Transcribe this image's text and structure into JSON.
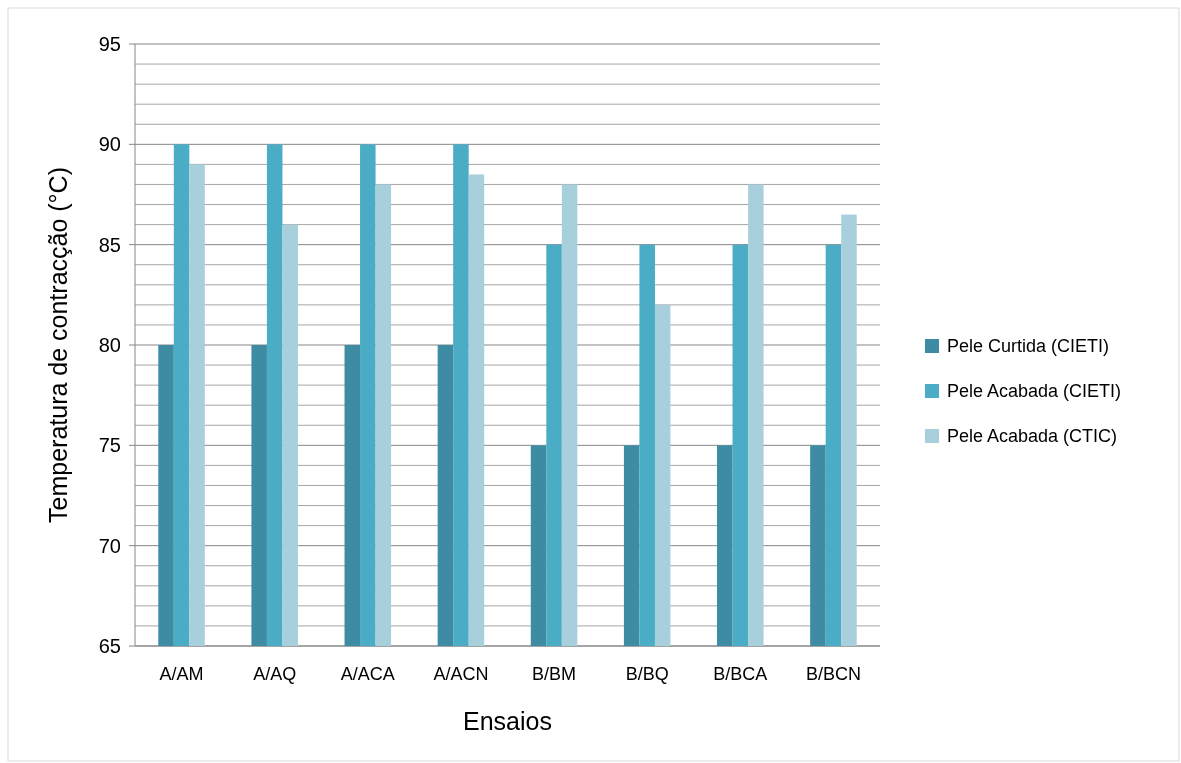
{
  "chart_data": {
    "type": "bar",
    "xlabel": "Ensaios",
    "ylabel": "Temperatura de contracção (°C)",
    "categories": [
      "A/AM",
      "A/AQ",
      "A/ACA",
      "A/ACN",
      "B/BM",
      "B/BQ",
      "B/BCA",
      "B/BCN"
    ],
    "series": [
      {
        "name": "Pele Curtida (CIETI)",
        "color": "#3d8ca3",
        "values": [
          80,
          80,
          80,
          80,
          75,
          75,
          75,
          75
        ]
      },
      {
        "name": "Pele Acabada (CIETI)",
        "color": "#4bacc6",
        "values": [
          90,
          90,
          90,
          90,
          85,
          85,
          85,
          85
        ]
      },
      {
        "name": "Pele Acabada (CTIC)",
        "color": "#a8d0dc",
        "values": [
          89,
          86,
          88,
          88.5,
          88,
          82,
          88,
          86.5
        ]
      }
    ],
    "ylim": [
      65,
      95
    ],
    "yticks": [
      65,
      {
        "value": 66,
        "label": null
      },
      {
        "value": 67,
        "label": null
      },
      {
        "value": 68,
        "label": null
      },
      {
        "value": 69,
        "label": null
      },
      70,
      {
        "value": 71,
        "label": null
      },
      {
        "value": 72,
        "label": null
      },
      {
        "value": 73,
        "label": null
      },
      {
        "value": 74,
        "label": null
      },
      75,
      {
        "value": 76,
        "label": null
      },
      {
        "value": 77,
        "label": null
      },
      {
        "value": 78,
        "label": null
      },
      {
        "value": 79,
        "label": null
      },
      80,
      {
        "value": 81,
        "label": null
      },
      {
        "value": 82,
        "label": null
      },
      {
        "value": 83,
        "label": null
      },
      {
        "value": 84,
        "label": null
      },
      85,
      {
        "value": 86,
        "label": null
      },
      {
        "value": 87,
        "label": null
      },
      {
        "value": 88,
        "label": null
      },
      {
        "value": 89,
        "label": null
      },
      90,
      {
        "value": 91,
        "label": null
      },
      {
        "value": 92,
        "label": null
      },
      {
        "value": 93,
        "label": null
      },
      {
        "value": 94,
        "label": null
      },
      95
    ],
    "grid": true,
    "legend": "right"
  }
}
